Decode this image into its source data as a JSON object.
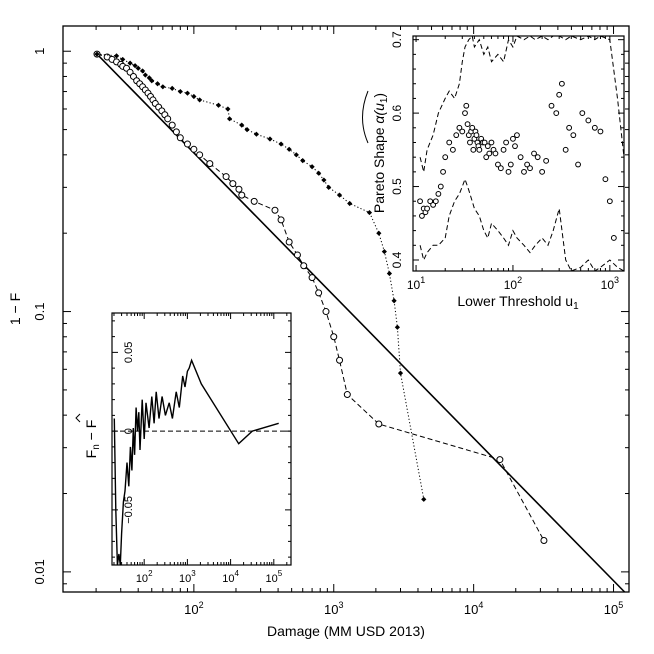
{
  "chart_data": [
    {
      "id": "main",
      "type": "line",
      "scale": {
        "x": "log",
        "y": "log"
      },
      "xlim": [
        11.6,
        129000
      ],
      "ylim": [
        0.00837,
        1.25
      ],
      "xlabel": "Damage (MM USD 2013)",
      "ylabel": "1 − F",
      "x_ticks": [
        {
          "value": 100,
          "base": "10",
          "exp": "2"
        },
        {
          "value": 1000,
          "base": "10",
          "exp": "3"
        },
        {
          "value": 10000,
          "base": "10",
          "exp": "4"
        },
        {
          "value": 100000,
          "base": "10",
          "exp": "5"
        }
      ],
      "y_ticks": [
        {
          "value": 1,
          "label": "1"
        },
        {
          "value": 0.1,
          "label": "0.1"
        },
        {
          "value": 0.01,
          "label": "0.01"
        }
      ],
      "series": [
        {
          "style": "solid",
          "x": [
            20.3,
            120000
          ],
          "y": [
            0.975,
            0.00837
          ]
        },
        {
          "style": "dashed-circles",
          "x": [
            20.3,
            24,
            26,
            28,
            30,
            31,
            33,
            35,
            37,
            39,
            41,
            43,
            45,
            47,
            49,
            51,
            53,
            56,
            59,
            62,
            65,
            70,
            75,
            80,
            90,
            100,
            110,
            130,
            170,
            190,
            210,
            220,
            270,
            380,
            420,
            480,
            550,
            610,
            700,
            780,
            880,
            1000,
            1100,
            1250,
            2100,
            15400,
            31800
          ],
          "y": [
            0.975,
            0.95,
            0.93,
            0.91,
            0.89,
            0.875,
            0.86,
            0.83,
            0.8,
            0.77,
            0.75,
            0.73,
            0.71,
            0.69,
            0.67,
            0.65,
            0.63,
            0.61,
            0.59,
            0.57,
            0.55,
            0.52,
            0.49,
            0.465,
            0.44,
            0.42,
            0.4,
            0.37,
            0.33,
            0.31,
            0.295,
            0.28,
            0.265,
            0.245,
            0.225,
            0.185,
            0.165,
            0.15,
            0.135,
            0.118,
            0.1,
            0.08,
            0.065,
            0.048,
            0.037,
            0.027,
            0.0132
          ]
        },
        {
          "style": "dotted-diamonds",
          "x": [
            20.3,
            28,
            31,
            35,
            38,
            40,
            43,
            45,
            48,
            50,
            55,
            60,
            70,
            80,
            90,
            100,
            110,
            150,
            175,
            180,
            220,
            240,
            280,
            350,
            420,
            480,
            540,
            600,
            700,
            780,
            850,
            920,
            1100,
            1300,
            1800,
            2100,
            2300,
            2500,
            2700,
            2850,
            3000,
            4400
          ],
          "y": [
            0.975,
            0.96,
            0.93,
            0.9,
            0.88,
            0.86,
            0.84,
            0.81,
            0.79,
            0.77,
            0.75,
            0.73,
            0.72,
            0.7,
            0.69,
            0.67,
            0.65,
            0.62,
            0.6,
            0.55,
            0.52,
            0.5,
            0.48,
            0.46,
            0.44,
            0.42,
            0.4,
            0.38,
            0.36,
            0.34,
            0.32,
            0.3,
            0.28,
            0.26,
            0.24,
            0.2,
            0.17,
            0.14,
            0.11,
            0.087,
            0.058,
            0.019
          ]
        }
      ]
    },
    {
      "id": "inset-diff",
      "type": "line",
      "scale": {
        "x": "log",
        "y": "linear"
      },
      "xlim": [
        18,
        250000
      ],
      "ylim": [
        -0.085,
        0.075
      ],
      "ylabel_main": "F",
      "ylabel_sub": "n",
      "ylabel_tail": " − ",
      "ylabel_hat": "F",
      "x_ticks": [
        {
          "value": 100,
          "base": "10",
          "exp": "2"
        },
        {
          "value": 1000,
          "base": "10",
          "exp": "3"
        },
        {
          "value": 10000,
          "base": "10",
          "exp": "4"
        },
        {
          "value": 100000,
          "base": "10",
          "exp": "5"
        }
      ],
      "y_ticks": [
        {
          "value": 0.05,
          "label": "0.05"
        },
        {
          "value": 0,
          "label": "0"
        },
        {
          "value": -0.05,
          "label": "−0.05"
        }
      ],
      "reference_line": 0,
      "series": [
        {
          "style": "solid",
          "x": [
            20.3,
            22,
            24,
            26,
            28,
            30,
            33,
            36,
            40,
            44,
            48,
            52,
            56,
            60,
            65,
            70,
            75,
            80,
            90,
            100,
            110,
            130,
            150,
            170,
            190,
            220,
            260,
            310,
            380,
            450,
            550,
            650,
            780,
            880,
            1000,
            1100,
            1250,
            2100,
            15400,
            31800,
            130000
          ],
          "y": [
            0.008,
            -0.05,
            -0.085,
            -0.078,
            -0.085,
            -0.065,
            -0.045,
            -0.038,
            -0.02,
            -0.035,
            -0.01,
            -0.025,
            0.002,
            -0.015,
            0.015,
            0.0,
            0.012,
            -0.012,
            0.02,
            -0.005,
            0.018,
            0.002,
            0.022,
            0.005,
            0.025,
            0.008,
            0.022,
            0.01,
            0.018,
            0.008,
            0.025,
            0.015,
            0.035,
            0.028,
            0.038,
            0.04,
            0.045,
            0.03,
            -0.008,
            0.0,
            0.005
          ]
        }
      ]
    },
    {
      "id": "inset-shape",
      "type": "scatter",
      "scale": {
        "x": "log",
        "y": "linear"
      },
      "xlim": [
        9.3,
        1400
      ],
      "ylim": [
        0.385,
        0.705
      ],
      "xlabel_main": "Lower Threshold u",
      "xlabel_sub": "1",
      "ylabel": "Pareto Shape",
      "ylabel_symbol": "α(u",
      "ylabel_symbol_sub": "1",
      "ylabel_symbol_close": ")",
      "x_ticks": [
        {
          "value": 10,
          "base": "10",
          "exp": "1"
        },
        {
          "value": 100,
          "base": "10",
          "exp": "2"
        },
        {
          "value": 1000,
          "base": "10",
          "exp": "3"
        }
      ],
      "y_ticks": [
        {
          "value": 0.4,
          "label": "0.4"
        },
        {
          "value": 0.5,
          "label": "0.5"
        },
        {
          "value": 0.6,
          "label": "0.6"
        },
        {
          "value": 0.7,
          "label": "0.7"
        }
      ],
      "points": {
        "x": [
          11,
          11.5,
          12,
          12.5,
          13,
          14,
          15,
          16,
          17,
          18,
          19,
          20,
          22,
          24,
          26,
          28,
          30,
          32,
          33,
          34,
          35,
          36,
          37,
          38,
          39,
          40,
          41,
          42,
          43,
          44,
          45,
          47,
          49,
          51,
          53,
          55,
          57,
          60,
          63,
          66,
          70,
          75,
          80,
          85,
          90,
          95,
          100,
          105,
          110,
          120,
          130,
          140,
          150,
          165,
          180,
          200,
          220,
          250,
          280,
          300,
          320,
          350,
          380,
          420,
          470,
          520,
          600,
          700,
          800,
          900,
          1000,
          1100
        ],
        "y": [
          0.48,
          0.46,
          0.47,
          0.465,
          0.47,
          0.48,
          0.475,
          0.48,
          0.49,
          0.5,
          0.52,
          0.54,
          0.56,
          0.55,
          0.57,
          0.58,
          0.575,
          0.6,
          0.61,
          0.585,
          0.57,
          0.56,
          0.575,
          0.58,
          0.55,
          0.565,
          0.575,
          0.57,
          0.56,
          0.555,
          0.55,
          0.565,
          0.56,
          0.56,
          0.54,
          0.555,
          0.545,
          0.56,
          0.55,
          0.545,
          0.53,
          0.525,
          0.55,
          0.56,
          0.52,
          0.53,
          0.565,
          0.555,
          0.57,
          0.54,
          0.52,
          0.53,
          0.525,
          0.545,
          0.54,
          0.52,
          0.535,
          0.61,
          0.6,
          0.625,
          0.64,
          0.55,
          0.58,
          0.57,
          0.53,
          0.6,
          0.59,
          0.58,
          0.575,
          0.51,
          0.48,
          0.43
        ],
        "shape": "circle"
      },
      "bands": {
        "x": [
          11,
          12,
          13,
          15,
          17,
          20,
          22,
          25,
          28,
          30,
          32,
          35,
          38,
          40,
          45,
          50,
          55,
          60,
          70,
          80,
          90,
          100,
          110,
          130,
          150,
          170,
          200,
          230,
          260,
          300,
          350,
          400,
          500,
          600,
          700,
          800,
          1000,
          1200,
          1400
        ],
        "upper": [
          0.54,
          0.52,
          0.55,
          0.57,
          0.6,
          0.62,
          0.63,
          0.62,
          0.64,
          0.67,
          0.69,
          0.7,
          0.705,
          0.69,
          0.7,
          0.68,
          0.69,
          0.67,
          0.68,
          0.67,
          0.7,
          0.69,
          0.705,
          0.7,
          0.705,
          0.7,
          0.705,
          0.7,
          0.705,
          0.705,
          0.7,
          0.705,
          0.7,
          0.705,
          0.7,
          0.705,
          0.7,
          0.62,
          0.54
        ],
        "lower": [
          0.42,
          0.4,
          0.41,
          0.42,
          0.42,
          0.43,
          0.46,
          0.48,
          0.49,
          0.5,
          0.51,
          0.495,
          0.48,
          0.47,
          0.46,
          0.44,
          0.43,
          0.45,
          0.44,
          0.43,
          0.42,
          0.44,
          0.43,
          0.42,
          0.41,
          0.42,
          0.43,
          0.42,
          0.44,
          0.47,
          0.4,
          0.385,
          0.39,
          0.4,
          0.385,
          0.39,
          0.4,
          0.39,
          0.385
        ]
      }
    }
  ]
}
